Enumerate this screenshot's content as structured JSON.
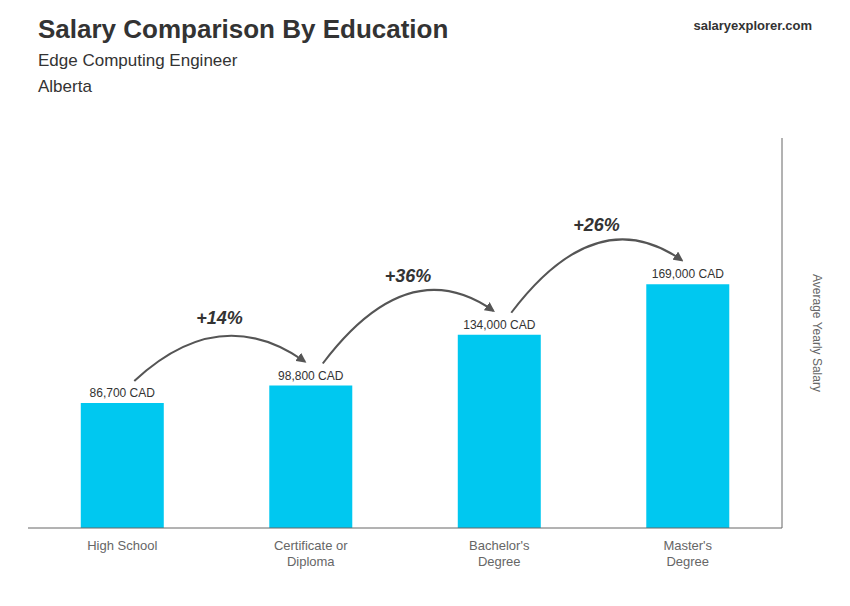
{
  "chart_data": {
    "type": "bar",
    "title": "Salary Comparison By Education",
    "subtitle": [
      "Edge Computing Engineer",
      "Alberta"
    ],
    "categories": [
      "High School",
      "Certificate or\nDiploma",
      "Bachelor's\nDegree",
      "Master's\nDegree"
    ],
    "values": [
      86700,
      98800,
      134000,
      169000
    ],
    "value_labels": [
      "86,700 CAD",
      "98,800 CAD",
      "134,000 CAD",
      "169,000 CAD"
    ],
    "data_labels": true,
    "color": "#00c8f0",
    "y_label": "Average Yearly Salary",
    "ylim": [
      0,
      270400
    ],
    "tick_labels": "x",
    "annotations": [
      "+14%",
      "+36%",
      "+26%",
      "salaryexplorer.com"
    ]
  }
}
